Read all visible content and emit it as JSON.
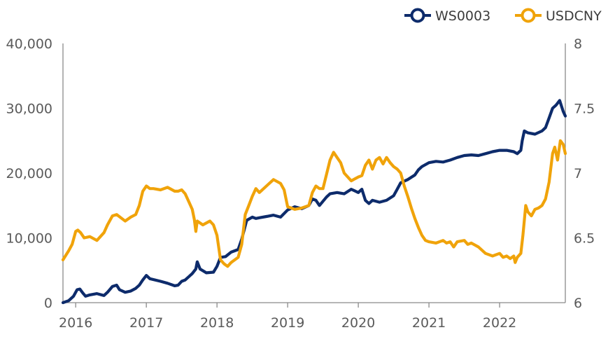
{
  "chart_data": {
    "type": "line",
    "colors": {
      "WS0003": "#0d2b6b",
      "USDCNY": "#f0a30a",
      "axis": "#8a8a8a"
    },
    "legend_position": "top-right",
    "grid": false,
    "x_axis": {
      "ticks": [
        "2016",
        "2017",
        "2018",
        "2019",
        "2020",
        "2021",
        "2022"
      ],
      "range": [
        2015.82,
        2022.93
      ]
    },
    "y_left": {
      "ticks": [
        "0",
        "10,000",
        "20,000",
        "30,000",
        "40,000"
      ],
      "range": [
        0,
        40000
      ]
    },
    "y_right": {
      "ticks": [
        "6",
        "6.5",
        "7",
        "7.5",
        "8"
      ],
      "range": [
        6,
        8
      ]
    },
    "series": [
      {
        "name": "WS0003",
        "axis": "left",
        "x": [
          2015.82,
          2015.9,
          2015.97,
          2016.02,
          2016.06,
          2016.1,
          2016.14,
          2016.2,
          2016.3,
          2016.4,
          2016.45,
          2016.52,
          2016.58,
          2016.62,
          2016.7,
          2016.78,
          2016.85,
          2016.9,
          2016.95,
          2017.0,
          2017.05,
          2017.2,
          2017.3,
          2017.4,
          2017.45,
          2017.5,
          2017.55,
          2017.6,
          2017.65,
          2017.7,
          2017.72,
          2017.76,
          2017.85,
          2017.95,
          2018.0,
          2018.05,
          2018.12,
          2018.2,
          2018.3,
          2018.35,
          2018.42,
          2018.5,
          2018.55,
          2018.6,
          2018.7,
          2018.8,
          2018.9,
          2019.0,
          2019.1,
          2019.2,
          2019.3,
          2019.35,
          2019.4,
          2019.45,
          2019.55,
          2019.6,
          2019.7,
          2019.8,
          2019.9,
          2020.0,
          2020.05,
          2020.1,
          2020.15,
          2020.2,
          2020.3,
          2020.4,
          2020.5,
          2020.55,
          2020.6,
          2020.7,
          2020.8,
          2020.85,
          2020.9,
          2021.0,
          2021.1,
          2021.2,
          2021.3,
          2021.4,
          2021.5,
          2021.6,
          2021.7,
          2021.8,
          2021.9,
          2022.0,
          2022.1,
          2022.2,
          2022.25,
          2022.3,
          2022.32,
          2022.35,
          2022.4,
          2022.5,
          2022.6,
          2022.65,
          2022.7,
          2022.75,
          2022.8,
          2022.85,
          2022.9,
          2022.93
        ],
        "values": [
          0,
          300,
          1000,
          2000,
          2100,
          1500,
          1000,
          1200,
          1400,
          1100,
          1600,
          2500,
          2700,
          2000,
          1600,
          1800,
          2200,
          2700,
          3500,
          4200,
          3700,
          3300,
          3000,
          2600,
          2700,
          3300,
          3500,
          4000,
          4500,
          5200,
          6300,
          5200,
          4600,
          4700,
          5600,
          7000,
          7100,
          7800,
          8200,
          9800,
          12700,
          13200,
          13000,
          13100,
          13300,
          13500,
          13200,
          14300,
          14800,
          14500,
          15000,
          16000,
          15800,
          15000,
          16300,
          16800,
          17000,
          16800,
          17500,
          17000,
          17500,
          15800,
          15300,
          15800,
          15500,
          15800,
          16500,
          17500,
          18500,
          19000,
          19700,
          20500,
          21000,
          21600,
          21800,
          21700,
          22000,
          22400,
          22700,
          22800,
          22700,
          23000,
          23300,
          23500,
          23500,
          23300,
          23000,
          23500,
          25000,
          26500,
          26200,
          26000,
          26500,
          27000,
          28500,
          30000,
          30500,
          31200,
          29500,
          28800
        ]
      },
      {
        "name": "USDCNY",
        "axis": "right",
        "x": [
          2015.82,
          2015.9,
          2015.95,
          2016.0,
          2016.03,
          2016.07,
          2016.12,
          2016.2,
          2016.3,
          2016.4,
          2016.45,
          2016.52,
          2016.58,
          2016.7,
          2016.78,
          2016.85,
          2016.9,
          2016.95,
          2017.0,
          2017.05,
          2017.1,
          2017.2,
          2017.3,
          2017.4,
          2017.45,
          2017.5,
          2017.55,
          2017.6,
          2017.65,
          2017.68,
          2017.7,
          2017.72,
          2017.8,
          2017.9,
          2017.95,
          2018.0,
          2018.05,
          2018.1,
          2018.15,
          2018.2,
          2018.3,
          2018.35,
          2018.4,
          2018.45,
          2018.5,
          2018.55,
          2018.6,
          2018.7,
          2018.8,
          2018.9,
          2018.95,
          2019.0,
          2019.05,
          2019.1,
          2019.2,
          2019.3,
          2019.35,
          2019.4,
          2019.45,
          2019.5,
          2019.55,
          2019.6,
          2019.65,
          2019.7,
          2019.75,
          2019.8,
          2019.9,
          2020.0,
          2020.05,
          2020.1,
          2020.15,
          2020.2,
          2020.25,
          2020.3,
          2020.35,
          2020.4,
          2020.45,
          2020.5,
          2020.55,
          2020.6,
          2020.65,
          2020.7,
          2020.75,
          2020.8,
          2020.85,
          2020.9,
          2020.95,
          2021.0,
          2021.1,
          2021.2,
          2021.25,
          2021.3,
          2021.35,
          2021.4,
          2021.5,
          2021.55,
          2021.6,
          2021.7,
          2021.8,
          2021.9,
          2022.0,
          2022.05,
          2022.1,
          2022.15,
          2022.2,
          2022.22,
          2022.25,
          2022.3,
          2022.33,
          2022.37,
          2022.4,
          2022.45,
          2022.5,
          2022.55,
          2022.6,
          2022.65,
          2022.7,
          2022.75,
          2022.78,
          2022.82,
          2022.86,
          2022.9,
          2022.93
        ],
        "values": [
          6.33,
          6.4,
          6.45,
          6.55,
          6.56,
          6.54,
          6.5,
          6.51,
          6.48,
          6.54,
          6.6,
          6.67,
          6.68,
          6.63,
          6.66,
          6.68,
          6.75,
          6.86,
          6.9,
          6.88,
          6.88,
          6.87,
          6.89,
          6.86,
          6.86,
          6.87,
          6.84,
          6.78,
          6.72,
          6.64,
          6.55,
          6.63,
          6.6,
          6.63,
          6.6,
          6.52,
          6.33,
          6.3,
          6.28,
          6.31,
          6.35,
          6.45,
          6.68,
          6.75,
          6.82,
          6.88,
          6.85,
          6.9,
          6.95,
          6.92,
          6.87,
          6.74,
          6.73,
          6.72,
          6.73,
          6.75,
          6.85,
          6.9,
          6.88,
          6.88,
          6.99,
          7.1,
          7.16,
          7.12,
          7.08,
          7.0,
          6.94,
          6.97,
          6.98,
          7.06,
          7.1,
          7.03,
          7.1,
          7.12,
          7.07,
          7.12,
          7.08,
          7.05,
          7.03,
          7.0,
          6.9,
          6.82,
          6.73,
          6.65,
          6.58,
          6.52,
          6.48,
          6.47,
          6.46,
          6.48,
          6.46,
          6.47,
          6.43,
          6.47,
          6.48,
          6.45,
          6.46,
          6.43,
          6.38,
          6.36,
          6.38,
          6.35,
          6.36,
          6.34,
          6.36,
          6.31,
          6.35,
          6.38,
          6.52,
          6.75,
          6.7,
          6.67,
          6.72,
          6.73,
          6.75,
          6.8,
          6.93,
          7.15,
          7.2,
          7.1,
          7.25,
          7.22,
          7.15
        ]
      }
    ]
  }
}
